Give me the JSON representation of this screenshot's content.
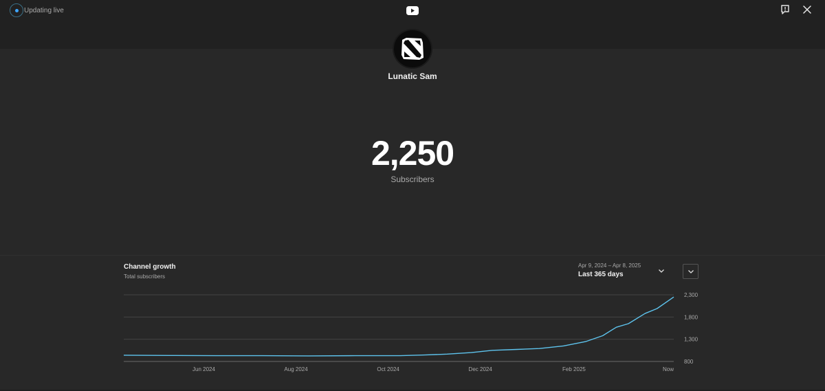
{
  "header": {
    "live_status": "Updating live",
    "icons": {
      "logo": "youtube-logo-icon",
      "report": "report-flag-icon",
      "close": "close-icon"
    }
  },
  "channel": {
    "name": "Lunatic Sam",
    "avatar_icon": "dota-logo-icon",
    "subscriber_count": "2,250",
    "subscriber_label": "Subscribers"
  },
  "growth": {
    "title": "Channel growth",
    "subtitle": "Total subscribers",
    "date_range": "Apr 9, 2024 – Apr 8, 2025",
    "period": "Last 365 days"
  },
  "colors": {
    "accent": "#3ea6ff",
    "line": "#5ec4ee",
    "background": "#282828",
    "header": "#212121"
  },
  "chart_data": {
    "type": "line",
    "title": "",
    "xlabel": "",
    "ylabel": "",
    "ylim": [
      800,
      2300
    ],
    "yticks": [
      800,
      1300,
      1800,
      2300
    ],
    "ytick_labels": [
      "800",
      "1,300",
      "1,800",
      "2,300"
    ],
    "xtick_labels": [
      "Jun 2024",
      "Aug 2024",
      "Oct 2024",
      "Dec 2024",
      "Feb 2025",
      "Now"
    ],
    "xtick_positions": [
      "2024-06-01",
      "2024-08-01",
      "2024-10-01",
      "2024-12-01",
      "2025-02-01",
      "2025-04-08"
    ],
    "grid": true,
    "legend": "none",
    "series": [
      {
        "x": [
          "2024-04-09",
          "2024-05-09",
          "2024-06-09",
          "2024-07-09",
          "2024-08-09",
          "2024-09-09",
          "2024-10-09",
          "2024-10-25",
          "2024-11-09",
          "2024-11-25",
          "2024-12-09",
          "2024-12-25",
          "2025-01-09",
          "2025-01-25",
          "2025-02-09",
          "2025-02-20",
          "2025-03-01",
          "2025-03-09",
          "2025-03-20",
          "2025-03-28",
          "2025-04-08"
        ],
        "values": [
          940,
          935,
          930,
          930,
          925,
          930,
          930,
          945,
          965,
          1000,
          1050,
          1070,
          1090,
          1150,
          1250,
          1380,
          1570,
          1650,
          1880,
          1990,
          2250
        ]
      }
    ]
  }
}
